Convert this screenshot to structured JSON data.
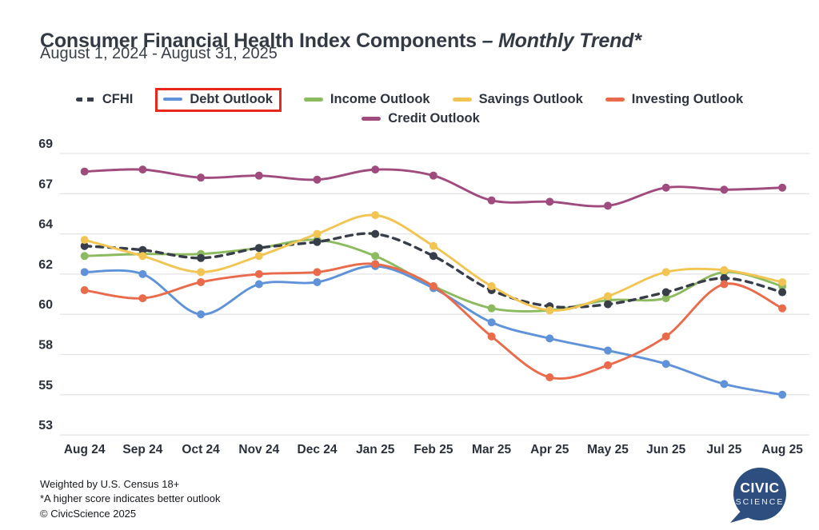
{
  "header": {
    "title": "Consumer Financial Health Index Components ",
    "title_emphasis": "– Monthly Trend*",
    "subtitle": "August 1, 2024 - August 31, 2025"
  },
  "legend": {
    "position": "top",
    "highlighted_item": "Debt Outlook",
    "highlight_color": "#e8271d"
  },
  "chart_data": {
    "type": "line",
    "title": "Consumer Financial Health Index Components – Monthly Trend*",
    "xlabel": "",
    "ylabel": "",
    "grid": "horizontal",
    "legend_position": "top",
    "y_ticks": [
      69,
      67,
      64,
      62,
      60,
      58,
      55,
      53
    ],
    "categories": [
      "Aug 24",
      "Sep 24",
      "Oct 24",
      "Nov 24",
      "Dec 24",
      "Jan 25",
      "Feb 25",
      "Mar 25",
      "Apr 25",
      "May 25",
      "Jun 25",
      "Jul 25",
      "Aug 25"
    ],
    "series": [
      {
        "name": "CFHI",
        "color": "#373d49",
        "style": "dashed",
        "values": [
          63.4,
          63.2,
          62.8,
          63.3,
          63.6,
          64.0,
          62.9,
          61.2,
          60.4,
          60.5,
          61.1,
          61.8,
          61.1
        ]
      },
      {
        "name": "Debt Outlook",
        "color": "#5f92d9",
        "style": "solid",
        "values": [
          62.1,
          62.0,
          60.0,
          61.5,
          61.6,
          62.4,
          61.3,
          59.6,
          58.8,
          58.2,
          57.3,
          55.8,
          55.0
        ]
      },
      {
        "name": "Income Outlook",
        "color": "#8cba5f",
        "style": "solid",
        "values": [
          62.9,
          63.0,
          63.0,
          63.3,
          63.7,
          62.9,
          61.4,
          60.3,
          60.2,
          60.7,
          60.8,
          62.1,
          61.4
        ]
      },
      {
        "name": "Savings Outlook",
        "color": "#f2c452",
        "style": "solid",
        "values": [
          63.7,
          62.9,
          62.1,
          62.9,
          64.0,
          65.4,
          63.4,
          61.4,
          60.2,
          60.9,
          62.1,
          62.2,
          61.6
        ]
      },
      {
        "name": "Investing Outlook",
        "color": "#e96b4c",
        "style": "solid",
        "values": [
          61.2,
          60.8,
          61.6,
          62.0,
          62.1,
          62.5,
          61.4,
          58.9,
          56.3,
          57.2,
          58.9,
          61.5,
          60.3
        ]
      },
      {
        "name": "Credit Outlook",
        "color": "#a04b7d",
        "style": "solid",
        "values": [
          68.1,
          68.2,
          67.8,
          67.9,
          67.7,
          68.2,
          67.9,
          66.5,
          66.4,
          66.1,
          67.3,
          67.2,
          67.3
        ]
      }
    ]
  },
  "footer": {
    "lines": [
      "Weighted by U.S. Census 18+",
      "*A higher score indicates better outlook",
      "© CivicScience 2025"
    ]
  },
  "logo": {
    "line1": "CIVIC",
    "line2": "SCIENCE",
    "color": "#2d4e7e",
    "text_color": "#ffffff"
  }
}
